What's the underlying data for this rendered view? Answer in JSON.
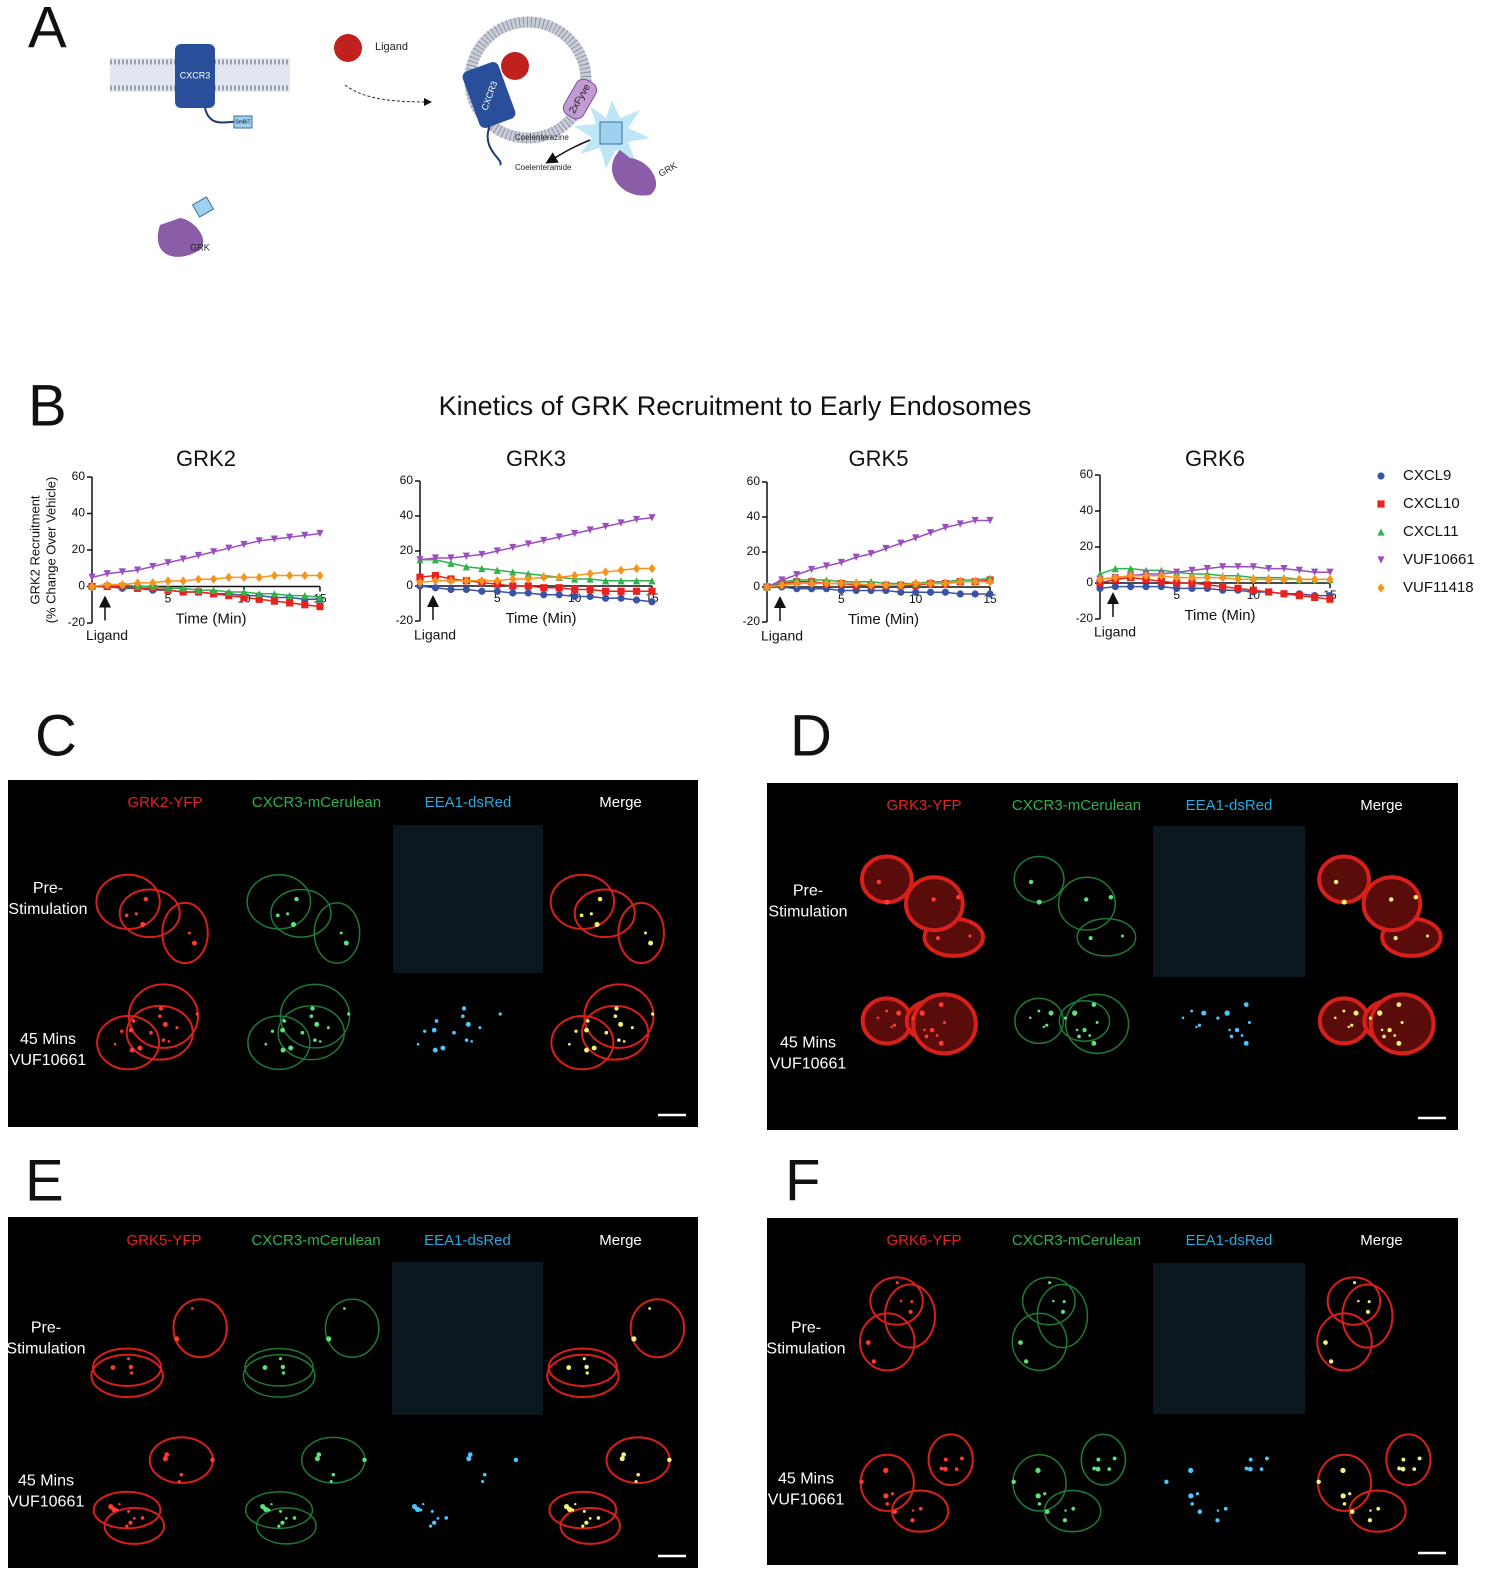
{
  "panel_a": {
    "letter": "A",
    "receptor": "CXCR3",
    "smbit": "SmBiT",
    "ligand": "Ligand",
    "fyve": "2xFyve",
    "substrate": "Coelenterazine",
    "product": "Coelenteramide",
    "grk": "GRK"
  },
  "panel_b": {
    "letter": "B",
    "title": "Kinetics of GRK Recruitment to Early Endosomes"
  },
  "chart_data": [
    {
      "type": "line",
      "title": "GRK2",
      "y_label": [
        "GRK2 Recruitment",
        "(% Change Over Vehicle)"
      ],
      "x_label": "Time (Min)",
      "annotation": "Ligand",
      "x": [
        0,
        1,
        2,
        3,
        4,
        5,
        6,
        7,
        8,
        9,
        10,
        11,
        12,
        13,
        14,
        15
      ],
      "xlim": [
        0,
        15
      ],
      "ylim": [
        -20,
        60
      ],
      "xticks": [
        5,
        10,
        15
      ],
      "yticks": [
        -20,
        0,
        20,
        40,
        60
      ],
      "series": [
        {
          "name": "CXCL9",
          "color": "#3a53a4",
          "marker": "circle",
          "values": [
            0,
            0,
            -1,
            -1,
            -2,
            -2,
            -3,
            -3,
            -4,
            -4,
            -5,
            -5,
            -6,
            -6,
            -7,
            -7
          ]
        },
        {
          "name": "CXCL10",
          "color": "#e8231f",
          "marker": "square",
          "values": [
            0,
            0,
            0,
            -1,
            -1,
            -2,
            -3,
            -3,
            -4,
            -5,
            -6,
            -7,
            -8,
            -9,
            -10,
            -11
          ]
        },
        {
          "name": "CXCL11",
          "color": "#2fb34a",
          "marker": "triangle",
          "values": [
            0,
            1,
            1,
            0,
            0,
            -1,
            -1,
            -2,
            -2,
            -3,
            -3,
            -4,
            -4,
            -5,
            -5,
            -6
          ]
        },
        {
          "name": "VUF10661",
          "color": "#9b4fbf",
          "marker": "triangle-down",
          "values": [
            5,
            7,
            8,
            9,
            11,
            13,
            15,
            17,
            19,
            21,
            23,
            25,
            26,
            27,
            28,
            29
          ]
        },
        {
          "name": "VUF11418",
          "color": "#f7941d",
          "marker": "diamond",
          "values": [
            0,
            1,
            1,
            2,
            2,
            3,
            3,
            4,
            4,
            5,
            5,
            5,
            6,
            6,
            6,
            6
          ]
        }
      ]
    },
    {
      "type": "line",
      "title": "GRK3",
      "x_label": "Time (Min)",
      "annotation": "Ligand",
      "x": [
        0,
        1,
        2,
        3,
        4,
        5,
        6,
        7,
        8,
        9,
        10,
        11,
        12,
        13,
        14,
        15
      ],
      "xlim": [
        0,
        15
      ],
      "ylim": [
        -20,
        60
      ],
      "xticks": [
        5,
        10,
        15
      ],
      "yticks": [
        -20,
        0,
        20,
        40,
        60
      ],
      "series": [
        {
          "name": "CXCL9",
          "color": "#3a53a4",
          "marker": "circle",
          "values": [
            0,
            -1,
            -2,
            -2,
            -3,
            -3,
            -4,
            -4,
            -5,
            -5,
            -6,
            -6,
            -7,
            -7,
            -8,
            -9
          ]
        },
        {
          "name": "CXCL10",
          "color": "#e8231f",
          "marker": "square",
          "values": [
            5,
            6,
            4,
            3,
            2,
            1,
            0,
            0,
            -1,
            -1,
            -2,
            -2,
            -3,
            -3,
            -3,
            -3
          ]
        },
        {
          "name": "CXCL11",
          "color": "#2fb34a",
          "marker": "triangle",
          "values": [
            15,
            15,
            13,
            11,
            10,
            9,
            8,
            7,
            6,
            5,
            4,
            4,
            3,
            3,
            3,
            3
          ]
        },
        {
          "name": "VUF10661",
          "color": "#9b4fbf",
          "marker": "triangle-down",
          "values": [
            15,
            16,
            16,
            17,
            18,
            20,
            22,
            24,
            26,
            28,
            30,
            32,
            34,
            36,
            38,
            39
          ]
        },
        {
          "name": "VUF11418",
          "color": "#f7941d",
          "marker": "diamond",
          "values": [
            2,
            3,
            3,
            3,
            3,
            3,
            4,
            4,
            5,
            5,
            6,
            7,
            8,
            9,
            10,
            10
          ]
        }
      ]
    },
    {
      "type": "line",
      "title": "GRK5",
      "x_label": "Time (Min)",
      "annotation": "Ligand",
      "x": [
        0,
        1,
        2,
        3,
        4,
        5,
        6,
        7,
        8,
        9,
        10,
        11,
        12,
        13,
        14,
        15
      ],
      "xlim": [
        0,
        15
      ],
      "ylim": [
        -20,
        60
      ],
      "xticks": [
        5,
        10,
        15
      ],
      "yticks": [
        -20,
        0,
        20,
        40,
        60
      ],
      "series": [
        {
          "name": "CXCL9",
          "color": "#3a53a4",
          "marker": "circle",
          "values": [
            0,
            0,
            -1,
            -1,
            -1,
            -2,
            -2,
            -2,
            -2,
            -3,
            -3,
            -3,
            -3,
            -4,
            -4,
            -4
          ]
        },
        {
          "name": "CXCL10",
          "color": "#e8231f",
          "marker": "square",
          "values": [
            0,
            2,
            3,
            3,
            2,
            2,
            1,
            1,
            1,
            1,
            1,
            2,
            2,
            3,
            3,
            4
          ]
        },
        {
          "name": "CXCL11",
          "color": "#2fb34a",
          "marker": "triangle",
          "values": [
            0,
            3,
            4,
            4,
            4,
            3,
            3,
            3,
            2,
            2,
            2,
            3,
            3,
            4,
            4,
            5
          ]
        },
        {
          "name": "VUF10661",
          "color": "#9b4fbf",
          "marker": "triangle-down",
          "values": [
            0,
            4,
            7,
            10,
            12,
            14,
            17,
            19,
            22,
            25,
            28,
            31,
            34,
            36,
            38,
            38
          ]
        },
        {
          "name": "VUF11418",
          "color": "#f7941d",
          "marker": "diamond",
          "values": [
            0,
            1,
            2,
            2,
            2,
            2,
            2,
            1,
            1,
            1,
            2,
            2,
            2,
            3,
            3,
            3
          ]
        }
      ]
    },
    {
      "type": "line",
      "title": "GRK6",
      "x_label": "Time (Min)",
      "annotation": "Ligand",
      "legend": "right",
      "x": [
        0,
        1,
        2,
        3,
        4,
        5,
        6,
        7,
        8,
        9,
        10,
        11,
        12,
        13,
        14,
        15
      ],
      "xlim": [
        0,
        15
      ],
      "ylim": [
        -20,
        60
      ],
      "xticks": [
        5,
        10,
        15
      ],
      "yticks": [
        -20,
        0,
        20,
        40,
        60
      ],
      "series": [
        {
          "name": "CXCL9",
          "color": "#3a53a4",
          "marker": "circle",
          "values": [
            -3,
            -2,
            -2,
            -2,
            -2,
            -3,
            -3,
            -3,
            -4,
            -4,
            -5,
            -5,
            -6,
            -6,
            -7,
            -7
          ]
        },
        {
          "name": "CXCL10",
          "color": "#e8231f",
          "marker": "square",
          "values": [
            0,
            2,
            3,
            2,
            1,
            0,
            0,
            -1,
            -2,
            -3,
            -4,
            -5,
            -6,
            -7,
            -8,
            -9
          ]
        },
        {
          "name": "CXCL11",
          "color": "#2fb34a",
          "marker": "triangle",
          "values": [
            5,
            8,
            8,
            7,
            7,
            6,
            5,
            5,
            4,
            4,
            3,
            3,
            3,
            2,
            2,
            2
          ]
        },
        {
          "name": "VUF10661",
          "color": "#9b4fbf",
          "marker": "triangle-down",
          "values": [
            2,
            3,
            4,
            5,
            5,
            6,
            7,
            8,
            9,
            9,
            9,
            8,
            8,
            7,
            6,
            6
          ]
        },
        {
          "name": "VUF11418",
          "color": "#f7941d",
          "marker": "diamond",
          "values": [
            2,
            3,
            4,
            4,
            4,
            3,
            3,
            3,
            3,
            2,
            2,
            2,
            2,
            2,
            2,
            2
          ]
        }
      ]
    }
  ],
  "micrographs": [
    {
      "letter": "C",
      "columns": [
        "GRK2-YFP",
        "CXCR3-mCerulean",
        "EEA1-dsRed",
        "Merge"
      ],
      "rows": [
        [
          "Pre-",
          "Stimulation"
        ],
        [
          "45 Mins",
          "VUF10661"
        ]
      ]
    },
    {
      "letter": "D",
      "columns": [
        "GRK3-YFP",
        "CXCR3-mCerulean",
        "EEA1-dsRed",
        "Merge"
      ],
      "rows": [
        [
          "Pre-",
          "Stimulation"
        ],
        [
          "45 Mins",
          "VUF10661"
        ]
      ]
    },
    {
      "letter": "E",
      "columns": [
        "GRK5-YFP",
        "CXCR3-mCerulean",
        "EEA1-dsRed",
        "Merge"
      ],
      "rows": [
        [
          "Pre-",
          "Stimulation"
        ],
        [
          "45 Mins",
          "VUF10661"
        ]
      ]
    },
    {
      "letter": "F",
      "columns": [
        "GRK6-YFP",
        "CXCR3-mCerulean",
        "EEA1-dsRed",
        "Merge"
      ],
      "rows": [
        [
          "Pre-",
          "Stimulation"
        ],
        [
          "45 Mins",
          "VUF10661"
        ]
      ]
    }
  ]
}
